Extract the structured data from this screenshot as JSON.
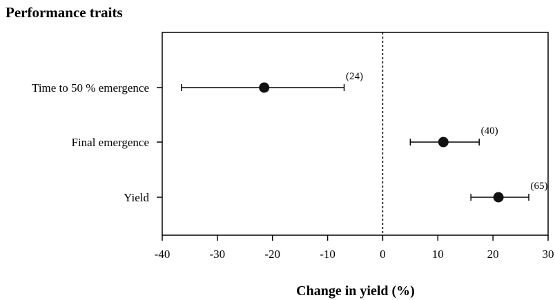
{
  "chart_data": {
    "type": "scatter",
    "subtype": "forest-plot",
    "title": "Performance traits",
    "xlabel": "Change in yield (%)",
    "xlim": [
      -40,
      30
    ],
    "xticks": [
      -40,
      -30,
      -20,
      -10,
      0,
      10,
      20,
      30
    ],
    "reference_line": 0,
    "categories": [
      "Time to 50 % emergence",
      "Final emergence",
      "Yield"
    ],
    "series": [
      {
        "points": [
          {
            "category": "Time to 50 % emergence",
            "mean": -21.5,
            "lower": -36.5,
            "upper": -7,
            "n_label": "(24)"
          },
          {
            "category": "Final emergence",
            "mean": 11,
            "lower": 5,
            "upper": 17.5,
            "n_label": "(40)"
          },
          {
            "category": "Yield",
            "mean": 21,
            "lower": 16,
            "upper": 26.5,
            "n_label": "(65)"
          }
        ]
      }
    ],
    "grid": false,
    "colors": {
      "marker": "#111111",
      "line": "#000000"
    }
  }
}
